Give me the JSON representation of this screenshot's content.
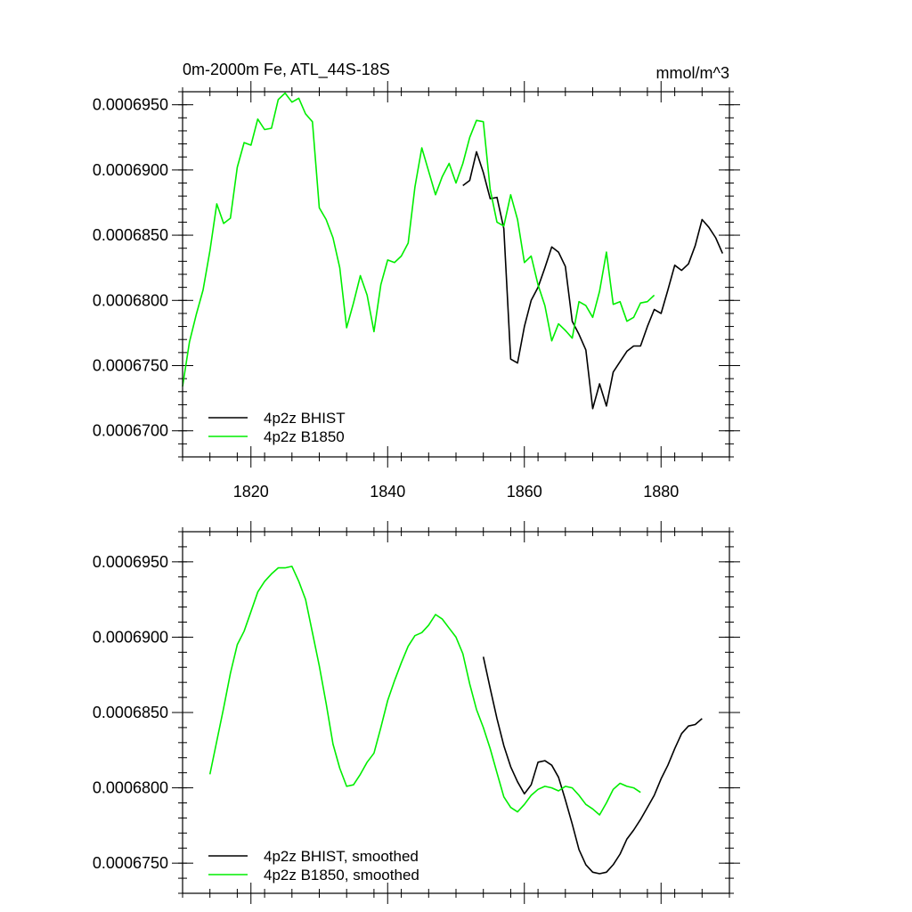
{
  "chart_data": [
    {
      "type": "line",
      "title": "0m-2000m Fe, ATL_44S-18S",
      "units": "mmol/m^3",
      "xlim": [
        1810,
        1890
      ],
      "ylim": [
        0.000668,
        0.000696
      ],
      "x_tick_values": [
        1820,
        1840,
        1860,
        1880
      ],
      "x_tick_labels": [
        "1820",
        "1840",
        "1860",
        "1880"
      ],
      "y_tick_values": [
        0.00067,
        0.000675,
        0.00068,
        0.000685,
        0.00069,
        0.000695
      ],
      "y_tick_labels": [
        "0.0006700",
        "0.0006750",
        "0.0006800",
        "0.0006850",
        "0.0006900",
        "0.0006950"
      ],
      "series": [
        {
          "name": "4p2z BHIST",
          "color": "#000000",
          "x": [
            1851,
            1852,
            1853,
            1854,
            1855,
            1856,
            1857,
            1858,
            1859,
            1860,
            1861,
            1862,
            1863,
            1864,
            1865,
            1866,
            1867,
            1868,
            1869,
            1870,
            1871,
            1872,
            1873,
            1874,
            1875,
            1876,
            1877,
            1878,
            1879,
            1880,
            1881,
            1882,
            1883,
            1884,
            1885,
            1886,
            1887,
            1888,
            1889
          ],
          "y": [
            0.0006888,
            0.0006892,
            0.0006914,
            0.0006898,
            0.0006878,
            0.0006879,
            0.0006855,
            0.0006755,
            0.0006752,
            0.000678,
            0.00068,
            0.000681,
            0.0006825,
            0.0006841,
            0.0006837,
            0.0006826,
            0.0006784,
            0.0006774,
            0.0006762,
            0.0006717,
            0.0006736,
            0.0006719,
            0.0006745,
            0.0006753,
            0.0006761,
            0.0006765,
            0.0006765,
            0.000678,
            0.0006793,
            0.000679,
            0.0006808,
            0.0006827,
            0.0006823,
            0.0006828,
            0.0006842,
            0.0006862,
            0.0006856,
            0.0006848,
            0.0006836
          ]
        },
        {
          "name": "4p2z B1850",
          "color": "#00ee00",
          "x": [
            1810,
            1811,
            1812,
            1813,
            1814,
            1815,
            1816,
            1817,
            1818,
            1819,
            1820,
            1821,
            1822,
            1823,
            1824,
            1825,
            1826,
            1827,
            1828,
            1829,
            1830,
            1831,
            1832,
            1833,
            1834,
            1835,
            1836,
            1837,
            1838,
            1839,
            1840,
            1841,
            1842,
            1843,
            1844,
            1845,
            1846,
            1847,
            1848,
            1849,
            1850,
            1851,
            1852,
            1853,
            1854,
            1855,
            1856,
            1857,
            1858,
            1859,
            1860,
            1861,
            1862,
            1863,
            1864,
            1865,
            1866,
            1867,
            1868,
            1869,
            1870,
            1871,
            1872,
            1873,
            1874,
            1875,
            1876,
            1877,
            1878,
            1879
          ],
          "y": [
            0.0006734,
            0.0006768,
            0.0006789,
            0.0006808,
            0.0006838,
            0.0006874,
            0.0006859,
            0.0006863,
            0.0006902,
            0.0006921,
            0.0006919,
            0.0006939,
            0.0006931,
            0.0006932,
            0.0006954,
            0.0006959,
            0.0006952,
            0.0006955,
            0.0006943,
            0.0006937,
            0.0006871,
            0.0006862,
            0.0006848,
            0.0006825,
            0.0006779,
            0.0006798,
            0.0006819,
            0.0006804,
            0.0006776,
            0.0006812,
            0.0006831,
            0.0006829,
            0.0006834,
            0.0006844,
            0.0006887,
            0.0006917,
            0.0006899,
            0.0006881,
            0.0006895,
            0.0006905,
            0.000689,
            0.0006905,
            0.0006925,
            0.0006938,
            0.0006937,
            0.0006885,
            0.000686,
            0.0006857,
            0.0006881,
            0.0006862,
            0.0006829,
            0.0006834,
            0.0006812,
            0.0006796,
            0.0006769,
            0.0006782,
            0.0006777,
            0.0006771,
            0.0006799,
            0.0006796,
            0.0006787,
            0.0006807,
            0.0006837,
            0.0006797,
            0.0006799,
            0.0006784,
            0.0006787,
            0.0006798,
            0.0006799,
            0.0006804
          ]
        }
      ],
      "legend": [
        "4p2z BHIST",
        "4p2z B1850"
      ]
    },
    {
      "type": "line",
      "title": "",
      "units": "",
      "xlim": [
        1810,
        1890
      ],
      "ylim": [
        0.000673,
        0.000697
      ],
      "x_tick_values": [
        1820,
        1840,
        1860,
        1880
      ],
      "y_tick_values": [
        0.000675,
        0.00068,
        0.000685,
        0.00069,
        0.000695
      ],
      "y_tick_labels": [
        "0.0006750",
        "0.0006800",
        "0.0006850",
        "0.0006900",
        "0.0006950"
      ],
      "series": [
        {
          "name": "4p2z BHIST, smoothed",
          "color": "#000000",
          "x": [
            1854,
            1855,
            1856,
            1857,
            1858,
            1859,
            1860,
            1861,
            1862,
            1863,
            1864,
            1865,
            1866,
            1867,
            1868,
            1869,
            1870,
            1871,
            1872,
            1873,
            1874,
            1875,
            1876,
            1877,
            1878,
            1879,
            1880,
            1881,
            1882,
            1883,
            1884,
            1885,
            1886
          ],
          "y": [
            0.0006887,
            0.0006866,
            0.0006846,
            0.0006828,
            0.0006814,
            0.0006804,
            0.0006796,
            0.0006802,
            0.0006817,
            0.0006818,
            0.0006815,
            0.0006807,
            0.0006792,
            0.0006776,
            0.0006759,
            0.0006749,
            0.0006744,
            0.0006743,
            0.0006744,
            0.0006749,
            0.0006756,
            0.0006766,
            0.0006772,
            0.0006779,
            0.0006787,
            0.0006795,
            0.0006806,
            0.0006815,
            0.0006826,
            0.0006836,
            0.0006841,
            0.0006842,
            0.0006846
          ]
        },
        {
          "name": "4p2z B1850, smoothed",
          "color": "#00ee00",
          "x": [
            1814,
            1815,
            1816,
            1817,
            1818,
            1819,
            1820,
            1821,
            1822,
            1823,
            1824,
            1825,
            1826,
            1827,
            1828,
            1829,
            1830,
            1831,
            1832,
            1833,
            1834,
            1835,
            1836,
            1837,
            1838,
            1839,
            1840,
            1841,
            1842,
            1843,
            1844,
            1845,
            1846,
            1847,
            1848,
            1849,
            1850,
            1851,
            1852,
            1853,
            1854,
            1855,
            1856,
            1857,
            1858,
            1859,
            1860,
            1861,
            1862,
            1863,
            1864,
            1865,
            1866,
            1867,
            1868,
            1869,
            1870,
            1871,
            1872,
            1873,
            1874,
            1875,
            1876,
            1877
          ],
          "y": [
            0.0006809,
            0.0006831,
            0.0006853,
            0.0006876,
            0.0006895,
            0.0006904,
            0.0006917,
            0.000693,
            0.0006937,
            0.0006942,
            0.0006946,
            0.0006946,
            0.0006947,
            0.0006937,
            0.0006925,
            0.0006903,
            0.0006881,
            0.0006856,
            0.0006829,
            0.0006813,
            0.0006801,
            0.0006802,
            0.0006809,
            0.0006817,
            0.0006823,
            0.000684,
            0.0006858,
            0.0006871,
            0.0006883,
            0.0006894,
            0.0006901,
            0.0006903,
            0.0006908,
            0.0006915,
            0.0006912,
            0.0006906,
            0.00069,
            0.0006889,
            0.0006869,
            0.0006852,
            0.000684,
            0.0006826,
            0.000681,
            0.0006794,
            0.0006787,
            0.0006784,
            0.0006789,
            0.0006795,
            0.0006799,
            0.0006801,
            0.00068,
            0.0006798,
            0.0006801,
            0.00068,
            0.0006795,
            0.0006789,
            0.0006786,
            0.0006782,
            0.000679,
            0.0006799,
            0.0006803,
            0.0006801,
            0.00068,
            0.0006797
          ]
        }
      ],
      "legend": [
        "4p2z BHIST, smoothed",
        "4p2z B1850, smoothed"
      ]
    }
  ]
}
